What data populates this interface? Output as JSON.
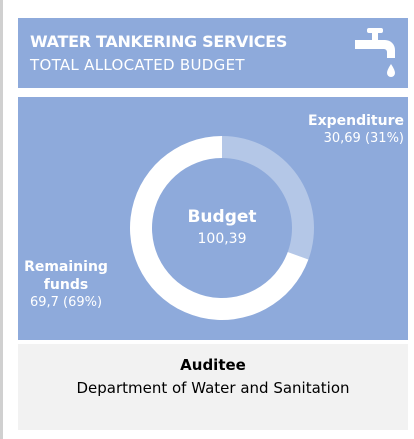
{
  "chart_data": {
    "type": "pie",
    "donut": true,
    "title": "WATER TANKERING SERVICES",
    "subtitle": "TOTAL ALLOCATED BUDGET",
    "center_label": "Budget",
    "total": {
      "value": 100.39,
      "label": "100,39"
    },
    "categories": [
      "Expenditure",
      "Remaining funds"
    ],
    "values": [
      30.69,
      69.7
    ],
    "value_labels": [
      "30,69 (31%)",
      "69,7 (69%)"
    ],
    "colors": [
      "#b4c7e7",
      "#ffffff"
    ]
  },
  "footer": {
    "heading": "Auditee",
    "text": "Department of Water and Sanitation"
  }
}
